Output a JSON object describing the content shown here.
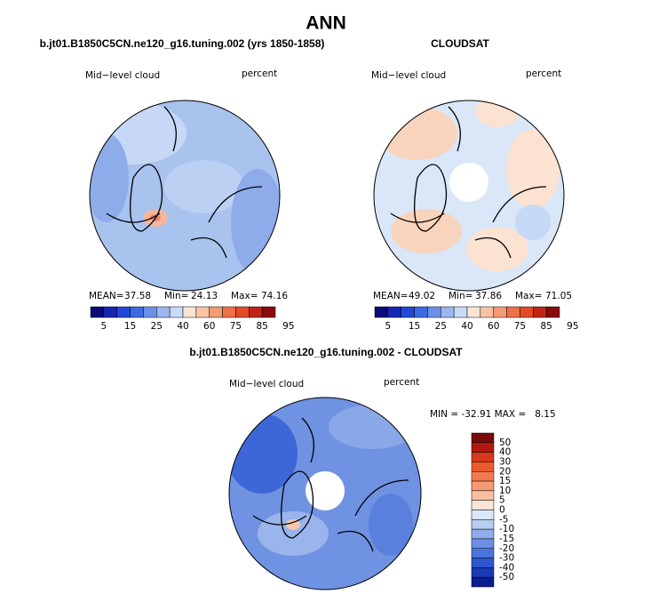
{
  "title": "ANN",
  "panels": [
    {
      "heading": "b.jt01.B1850C5CN.ne120_g16.tuning.002 (yrs 1850-1858)",
      "left_label": "Mid−level cloud",
      "right_label": "percent",
      "stats": [
        "MEAN=",
        "37.58",
        "Min=",
        "24.13",
        "Max=",
        "74.16"
      ],
      "colorbar_labels": [
        "5",
        "15",
        "25",
        "40",
        "60",
        "75",
        "85",
        "95"
      ]
    },
    {
      "heading": "CLOUDSAT",
      "left_label": "Mid−level cloud",
      "right_label": "percent",
      "stats": [
        "MEAN=",
        "49.02",
        "Min=",
        "37.86",
        "Max=",
        "71.05"
      ],
      "colorbar_labels": [
        "5",
        "15",
        "25",
        "40",
        "60",
        "75",
        "85",
        "95"
      ]
    },
    {
      "heading": "b.jt01.B1850C5CN.ne120_g16.tuning.002 - CLOUDSAT",
      "left_label": "Mid−level cloud",
      "right_label": "percent",
      "stats": "MIN = -32.91 MAX =   8.15",
      "colorbar_labels": [
        "50",
        "40",
        "30",
        "20",
        "15",
        "10",
        "5",
        "0",
        "-5",
        "-10",
        "-15",
        "-20",
        "-30",
        "-40",
        "-50"
      ]
    }
  ]
}
